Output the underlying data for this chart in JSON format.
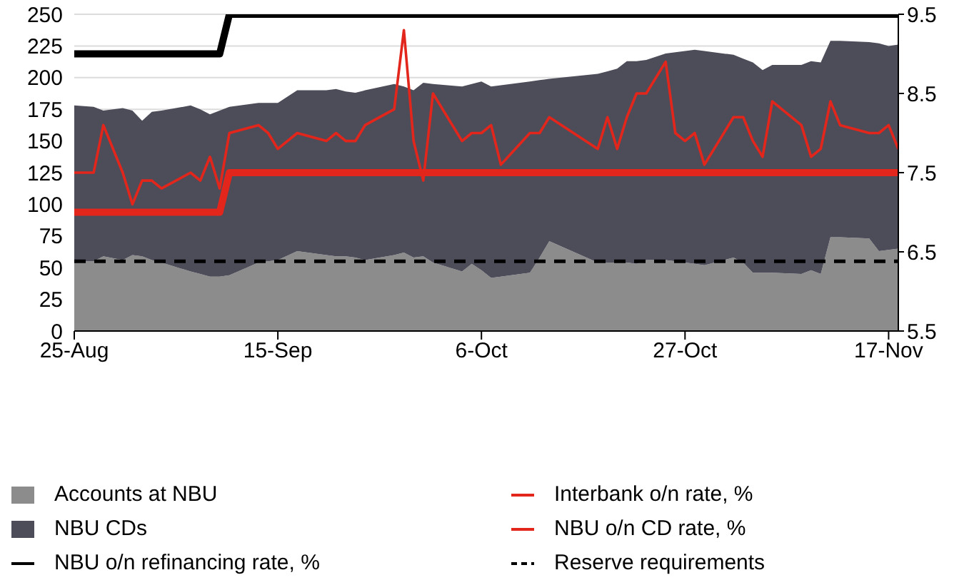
{
  "chart_data": {
    "type": "area",
    "stacked": true,
    "x": [
      "--08-25",
      "--08-27",
      "--08-28",
      "--08-30",
      "--08-31",
      "--09-01",
      "--09-02",
      "--09-03",
      "--09-06",
      "--09-07",
      "--09-08",
      "--09-09",
      "--09-10",
      "--09-13",
      "--09-14",
      "--09-15",
      "--09-17",
      "--09-20",
      "--09-21",
      "--09-22",
      "--09-23",
      "--09-24",
      "--09-27",
      "--09-28",
      "--09-29",
      "--09-30",
      "--10-01",
      "--10-04",
      "--10-05",
      "--10-06",
      "--10-07",
      "--10-08",
      "--10-11",
      "--10-12",
      "--10-13",
      "--10-18",
      "--10-19",
      "--10-20",
      "--10-21",
      "--10-22",
      "--10-23",
      "--10-25",
      "--10-26",
      "--10-27",
      "--10-28",
      "--10-29",
      "--11-01",
      "--11-02",
      "--11-03",
      "--11-04",
      "--11-05",
      "--11-08",
      "--11-09",
      "--11-10",
      "--11-11",
      "--11-12",
      "--11-15",
      "--11-16",
      "--11-17",
      "--11-18"
    ],
    "series": [
      {
        "name": "Accounts at NBU",
        "color": "#8c8c8c",
        "values": [
          55,
          55,
          59,
          56,
          60,
          59,
          56,
          54,
          47,
          45,
          43,
          43,
          44,
          54,
          55,
          56,
          63,
          60,
          59,
          59,
          58,
          56,
          60,
          62,
          58,
          59,
          54,
          47,
          53,
          48,
          42,
          43,
          46,
          58,
          71,
          54,
          54,
          54,
          54,
          53,
          56,
          56,
          55,
          54,
          53,
          52,
          58,
          54,
          46,
          46,
          46,
          45,
          48,
          45,
          74,
          74,
          73,
          63,
          64,
          65
        ]
      },
      {
        "name": "NBU CDs",
        "color": "#4d4d5a",
        "values": [
          123,
          122,
          115,
          120,
          114,
          107,
          117,
          120,
          131,
          130,
          128,
          131,
          133,
          126,
          125,
          124,
          127,
          130,
          132,
          130,
          130,
          134,
          135,
          131,
          132,
          137,
          141,
          146,
          142,
          149,
          151,
          151,
          151,
          140,
          128,
          149,
          151,
          153,
          159,
          160,
          158,
          163,
          165,
          167,
          169,
          169,
          160,
          161,
          166,
          160,
          164,
          165,
          165,
          167,
          155,
          155,
          155,
          164,
          161,
          161
        ]
      },
      {
        "name": "Reserve requirements",
        "type": "line",
        "color": "#000000",
        "line_style": "dashed",
        "values": [
          55,
          55,
          55,
          55,
          55,
          55,
          55,
          55,
          55,
          55,
          55,
          55,
          55,
          55,
          55,
          55,
          55,
          55,
          55,
          55,
          55,
          55,
          55,
          55,
          55,
          55,
          55,
          55,
          55,
          55,
          55,
          55,
          55,
          55,
          55,
          55,
          55,
          55,
          55,
          55,
          55,
          55,
          55,
          55,
          55,
          55,
          55,
          55,
          55,
          55,
          55,
          55,
          55,
          55,
          55,
          55,
          55,
          55,
          55,
          55
        ]
      },
      {
        "name": "Interbank o/n rate, %",
        "type": "line",
        "axis": "y2",
        "color": "#e3261c",
        "values": [
          7.5,
          7.5,
          8.1,
          7.5,
          7.1,
          7.4,
          7.4,
          7.3,
          7.5,
          7.4,
          7.7,
          7.3,
          8.0,
          8.1,
          8.0,
          7.8,
          8.0,
          7.9,
          8.0,
          7.9,
          7.9,
          8.1,
          8.3,
          9.3,
          7.9,
          7.4,
          8.5,
          7.9,
          8.0,
          8.0,
          8.1,
          7.6,
          8.0,
          8.0,
          8.2,
          7.8,
          8.2,
          7.8,
          8.2,
          8.5,
          8.5,
          8.9,
          8.0,
          7.9,
          8.0,
          7.6,
          8.2,
          8.2,
          7.9,
          7.7,
          8.4,
          8.1,
          7.7,
          7.8,
          8.4,
          8.1,
          8.0,
          8.0,
          8.1,
          7.8
        ]
      },
      {
        "name": "NBU o/n CD rate, %",
        "type": "line",
        "axis": "y2",
        "color": "#e3261c",
        "values": [
          7.0,
          7.0,
          7.0,
          7.0,
          7.0,
          7.0,
          7.0,
          7.0,
          7.0,
          7.0,
          7.0,
          7.0,
          7.5,
          7.5,
          7.5,
          7.5,
          7.5,
          7.5,
          7.5,
          7.5,
          7.5,
          7.5,
          7.5,
          7.5,
          7.5,
          7.5,
          7.5,
          7.5,
          7.5,
          7.5,
          7.5,
          7.5,
          7.5,
          7.5,
          7.5,
          7.5,
          7.5,
          7.5,
          7.5,
          7.5,
          7.5,
          7.5,
          7.5,
          7.5,
          7.5,
          7.5,
          7.5,
          7.5,
          7.5,
          7.5,
          7.5,
          7.5,
          7.5,
          7.5,
          7.5,
          7.5,
          7.5,
          7.5,
          7.5,
          7.5
        ]
      },
      {
        "name": "NBU o/n refinancing rate, %",
        "type": "line",
        "axis": "y2",
        "color": "#000000",
        "values": [
          9.0,
          9.0,
          9.0,
          9.0,
          9.0,
          9.0,
          9.0,
          9.0,
          9.0,
          9.0,
          9.0,
          9.0,
          9.5,
          9.5,
          9.5,
          9.5,
          9.5,
          9.5,
          9.5,
          9.5,
          9.5,
          9.5,
          9.5,
          9.5,
          9.5,
          9.5,
          9.5,
          9.5,
          9.5,
          9.5,
          9.5,
          9.5,
          9.5,
          9.5,
          9.5,
          9.5,
          9.5,
          9.5,
          9.5,
          9.5,
          9.5,
          9.5,
          9.5,
          9.5,
          9.5,
          9.5,
          9.5,
          9.5,
          9.5,
          9.5,
          9.5,
          9.5,
          9.5,
          9.5,
          9.5,
          9.5,
          9.5,
          9.5,
          9.5,
          9.5
        ]
      }
    ],
    "xlim": [
      "--08-25",
      "--11-18"
    ],
    "xticks": [
      {
        "value": "--08-25",
        "label": "25-Aug"
      },
      {
        "value": "--09-15",
        "label": "15-Sep"
      },
      {
        "value": "--10-06",
        "label": "6-Oct"
      },
      {
        "value": "--10-27",
        "label": "27-Oct"
      },
      {
        "value": "--11-17",
        "label": "17-Nov"
      }
    ],
    "ylim": [
      0,
      250
    ],
    "yticks": [
      0,
      25,
      50,
      75,
      100,
      125,
      150,
      175,
      200,
      225,
      250
    ],
    "y2lim": [
      5.5,
      9.5
    ],
    "y2ticks": [
      5.5,
      6.5,
      7.5,
      8.5,
      9.5
    ],
    "grid": "y",
    "legend": "bottom"
  }
}
